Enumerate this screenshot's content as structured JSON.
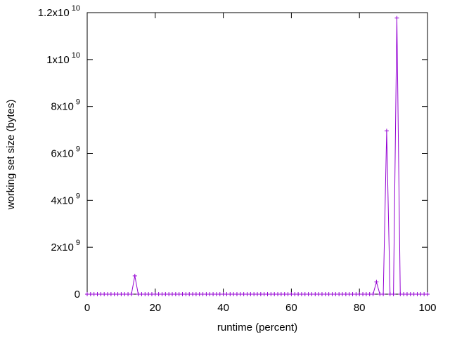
{
  "chart_data": {
    "type": "line",
    "xlabel": "runtime (percent)",
    "ylabel": "working set size (bytes)",
    "xlim": [
      0,
      100
    ],
    "ylim": [
      0,
      12000000000
    ],
    "x_ticks": [
      0,
      20,
      40,
      60,
      80,
      100
    ],
    "y_ticks": [
      {
        "value": 0,
        "mantissa": "0",
        "exponent": ""
      },
      {
        "value": 2000000000,
        "mantissa": "2x10",
        "exponent": "9"
      },
      {
        "value": 4000000000,
        "mantissa": "4x10",
        "exponent": "9"
      },
      {
        "value": 6000000000,
        "mantissa": "6x10",
        "exponent": "9"
      },
      {
        "value": 8000000000,
        "mantissa": "8x10",
        "exponent": "9"
      },
      {
        "value": 10000000000,
        "mantissa": "1x10",
        "exponent": "10"
      },
      {
        "value": 12000000000,
        "mantissa": "1.2x10",
        "exponent": "10"
      }
    ],
    "grid": false,
    "series": [
      {
        "color": "#9400d3",
        "marker": "plus",
        "x_start": 0,
        "x_step": 1,
        "values": [
          0,
          0,
          0,
          0,
          0,
          0,
          0,
          0,
          0,
          0,
          0,
          0,
          0,
          0,
          780000000,
          0,
          0,
          0,
          0,
          0,
          0,
          0,
          0,
          0,
          0,
          0,
          0,
          0,
          0,
          0,
          0,
          0,
          0,
          0,
          0,
          0,
          0,
          0,
          0,
          0,
          0,
          0,
          0,
          0,
          0,
          0,
          0,
          0,
          0,
          0,
          0,
          0,
          0,
          0,
          0,
          0,
          0,
          0,
          0,
          0,
          0,
          0,
          0,
          0,
          0,
          0,
          0,
          0,
          0,
          0,
          0,
          0,
          0,
          0,
          0,
          0,
          0,
          0,
          0,
          0,
          0,
          0,
          0,
          0,
          0,
          520000000,
          0,
          0,
          6960000000,
          0,
          0,
          11770000000,
          0,
          0,
          0,
          0,
          0,
          0,
          0,
          0,
          0
        ]
      }
    ]
  }
}
